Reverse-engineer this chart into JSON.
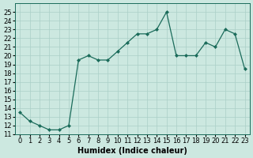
{
  "x": [
    0,
    1,
    2,
    3,
    4,
    5,
    6,
    7,
    8,
    9,
    10,
    11,
    12,
    13,
    14,
    15,
    16,
    17,
    18,
    19,
    20,
    21,
    22,
    23
  ],
  "y": [
    13.5,
    12.5,
    12.0,
    11.5,
    11.5,
    12.0,
    19.5,
    20.0,
    19.5,
    19.5,
    20.5,
    21.5,
    22.5,
    22.5,
    23.0,
    25.0,
    20.0,
    20.0,
    20.0,
    21.5,
    21.0,
    23.0,
    22.5,
    18.5
  ],
  "line_color": "#1a6b5a",
  "marker": "D",
  "markersize": 2.0,
  "linewidth": 0.9,
  "bg_color": "#cce8e0",
  "grid_color": "#aacfc7",
  "xlabel": "Humidex (Indice chaleur)",
  "ylim": [
    11,
    26
  ],
  "xlim": [
    -0.5,
    23.5
  ],
  "yticks": [
    11,
    12,
    13,
    14,
    15,
    16,
    17,
    18,
    19,
    20,
    21,
    22,
    23,
    24,
    25
  ],
  "xtick_labels": [
    "0",
    "1",
    "2",
    "3",
    "4",
    "5",
    "6",
    "7",
    "8",
    "9",
    "10",
    "11",
    "12",
    "13",
    "14",
    "15",
    "16",
    "17",
    "18",
    "19",
    "20",
    "21",
    "22",
    "23"
  ],
  "xlabel_fontsize": 7,
  "tick_fontsize": 6
}
